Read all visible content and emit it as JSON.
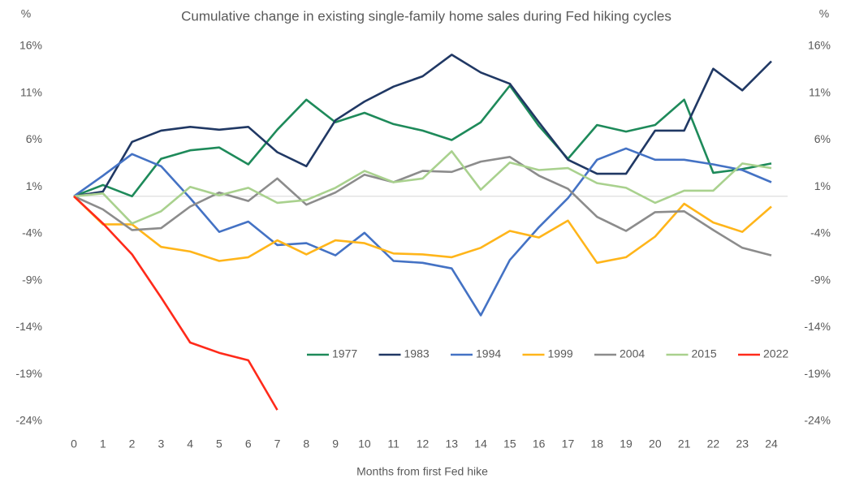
{
  "chart_data": {
    "type": "line",
    "title": "Cumulative change in existing single-family home sales during Fed hiking cycles",
    "ylabel": "%",
    "y2label": "%",
    "xlabel": "Months from first Fed hike",
    "x": [
      0,
      1,
      2,
      3,
      4,
      5,
      6,
      7,
      8,
      9,
      10,
      11,
      12,
      13,
      14,
      15,
      16,
      17,
      18,
      19,
      20,
      21,
      22,
      23,
      24
    ],
    "xlim": [
      0,
      24
    ],
    "xticks": [
      0,
      1,
      2,
      3,
      4,
      5,
      6,
      7,
      8,
      9,
      10,
      11,
      12,
      13,
      14,
      15,
      16,
      17,
      18,
      19,
      20,
      21,
      22,
      23,
      24
    ],
    "ylim": [
      -24,
      16
    ],
    "yticks": [
      {
        "value": 16,
        "label": "16%"
      },
      {
        "value": 11,
        "label": "11%"
      },
      {
        "value": 6,
        "label": "6%"
      },
      {
        "value": 1,
        "label": "1%"
      },
      {
        "value": -4,
        "label": "-4%"
      },
      {
        "value": -9,
        "label": "-9%"
      },
      {
        "value": -14,
        "label": "-14%"
      },
      {
        "value": -19,
        "label": "-19%"
      },
      {
        "value": -24,
        "label": "-24%"
      }
    ],
    "y2lim": [
      -24,
      16
    ],
    "y2ticks": [
      {
        "value": 16,
        "label": "16%"
      },
      {
        "value": 11,
        "label": "11%"
      },
      {
        "value": 6,
        "label": "6%"
      },
      {
        "value": 1,
        "label": "1%"
      },
      {
        "value": -4,
        "label": "-4%"
      },
      {
        "value": -9,
        "label": "-9%"
      },
      {
        "value": -14,
        "label": "-14%"
      },
      {
        "value": -19,
        "label": "-19%"
      },
      {
        "value": -24,
        "label": "-24%"
      }
    ],
    "grid": false,
    "legend": "lower right",
    "series": [
      {
        "name": "1977",
        "color": "#1e8a5a",
        "values": [
          0,
          1.2,
          0,
          4.0,
          4.9,
          5.2,
          3.4,
          7.1,
          10.3,
          7.9,
          8.9,
          7.7,
          7.0,
          6.0,
          7.9,
          11.8,
          7.5,
          4.0,
          7.6,
          6.9,
          7.6,
          10.3,
          2.5,
          2.9,
          3.5
        ]
      },
      {
        "name": "1983",
        "color": "#203864",
        "values": [
          0,
          0.5,
          5.8,
          7.0,
          7.4,
          7.1,
          7.4,
          4.7,
          3.2,
          8.1,
          10.1,
          11.7,
          12.8,
          15.1,
          13.2,
          12.0,
          7.9,
          3.9,
          2.4,
          2.4,
          7.0,
          7.0,
          13.6,
          11.3,
          14.4
        ]
      },
      {
        "name": "1994",
        "color": "#4472c4",
        "values": [
          0,
          2.2,
          4.5,
          3.2,
          -0.2,
          -3.8,
          -2.7,
          -5.2,
          -5.0,
          -6.3,
          -3.9,
          -6.9,
          -7.1,
          -7.7,
          -12.7,
          -6.8,
          -3.3,
          -0.2,
          3.9,
          5.1,
          3.9,
          3.9,
          3.4,
          2.8,
          1.5
        ]
      },
      {
        "name": "1999",
        "color": "#ffb51a",
        "values": [
          0,
          -3.0,
          -3.0,
          -5.4,
          -5.9,
          -6.9,
          -6.5,
          -4.7,
          -6.2,
          -4.7,
          -5.0,
          -6.1,
          -6.2,
          -6.5,
          -5.5,
          -3.7,
          -4.4,
          -2.6,
          -7.1,
          -6.5,
          -4.3,
          -0.8,
          -2.8,
          -3.8,
          -1.1
        ]
      },
      {
        "name": "2004",
        "color": "#8c8c8c",
        "values": [
          0,
          -1.4,
          -3.6,
          -3.4,
          -1.1,
          0.4,
          -0.5,
          1.9,
          -0.9,
          0.4,
          2.3,
          1.5,
          2.7,
          2.6,
          3.7,
          4.2,
          2.2,
          0.8,
          -2.2,
          -3.7,
          -1.7,
          -1.6,
          -3.6,
          -5.5,
          -6.3
        ]
      },
      {
        "name": "2015",
        "color": "#a9d18e",
        "values": [
          0,
          0.3,
          -2.9,
          -1.6,
          1.0,
          0.1,
          0.9,
          -0.7,
          -0.4,
          0.9,
          2.7,
          1.5,
          1.9,
          4.8,
          0.7,
          3.6,
          2.8,
          3.0,
          1.4,
          0.9,
          -0.7,
          0.6,
          0.6,
          3.5,
          3.0
        ]
      },
      {
        "name": "2022",
        "color": "#ff2a1a",
        "values": [
          0,
          -2.9,
          -6.2,
          -10.8,
          -15.6,
          -16.7,
          -17.5,
          -22.8,
          null,
          null,
          null,
          null,
          null,
          null,
          null,
          null,
          null,
          null,
          null,
          null,
          null,
          null,
          null,
          null,
          null
        ]
      }
    ]
  }
}
